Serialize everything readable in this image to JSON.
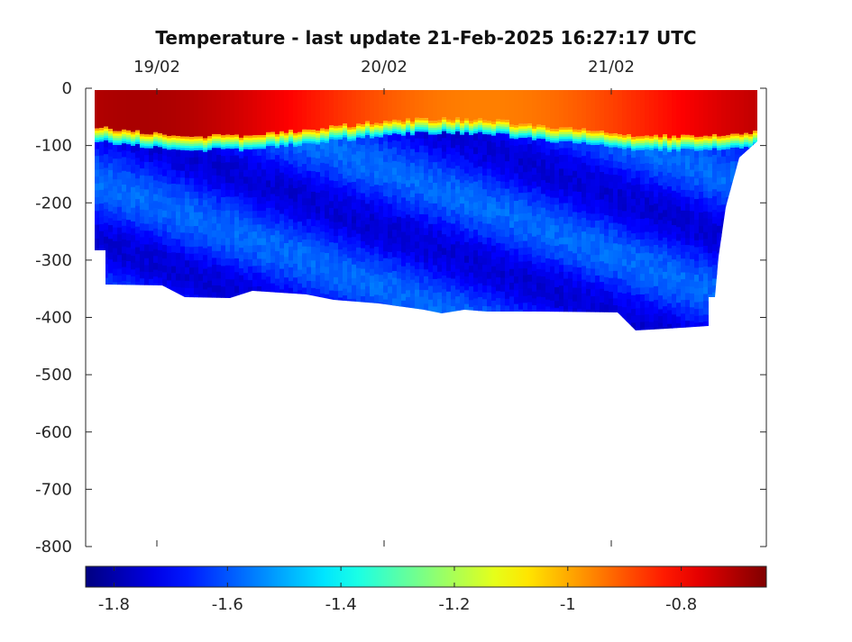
{
  "chart_data": {
    "type": "heatmap",
    "title": "Temperature - last update 21-Feb-2025 16:27:17 UTC",
    "xlabel": "",
    "ylabel": "",
    "x_ticks": [
      "19/02",
      "20/02",
      "21/02"
    ],
    "y_ticks": [
      0,
      -100,
      -200,
      -300,
      -400,
      -500,
      -600,
      -700,
      -800
    ],
    "ylim": [
      -800,
      0
    ],
    "colorbar": {
      "ticks": [
        -1.8,
        -1.6,
        -1.4,
        -1.2,
        -1,
        -0.8
      ],
      "tick_labels": [
        "-1.8",
        "-1.6",
        "-1.4",
        "-1.2",
        "-1",
        "-0.8"
      ],
      "range": [
        -1.85,
        -0.65
      ],
      "colormap": "jet"
    },
    "grid": false,
    "series": [
      {
        "layer": "surface",
        "depth_range": [
          0,
          -70
        ],
        "temperature_range": [
          -0.95,
          -0.7
        ]
      },
      {
        "layer": "thermocline",
        "depth_range": [
          -70,
          -90
        ],
        "temperature_range": [
          -1.4,
          -1.0
        ]
      },
      {
        "layer": "deep",
        "depth_range": [
          -90,
          -420
        ],
        "temperature_range": [
          -1.8,
          -1.55
        ]
      }
    ]
  }
}
